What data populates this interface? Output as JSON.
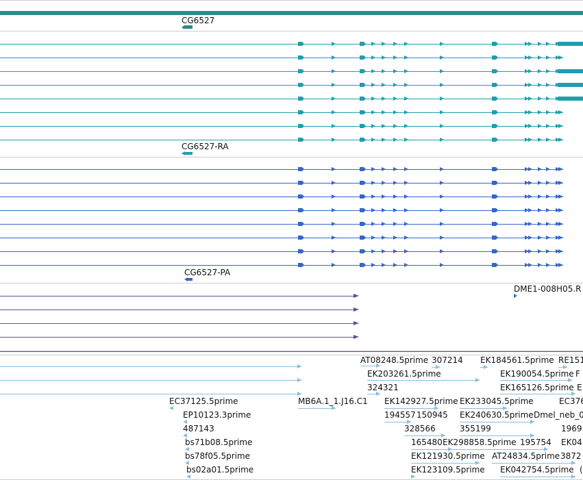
{
  "colors": {
    "gene": "#2e8b8b",
    "mrna": "#1e9eb0",
    "protein": "#3366cc",
    "purple": "#6a4a9c",
    "est": "#87bde0",
    "divider": "#cccccc"
  },
  "tracks": {
    "gene": {
      "label": "CG6527"
    },
    "mrna": {
      "label": "CG6527-RA",
      "rows": 8
    },
    "protein": {
      "label": "CG6527-PA",
      "rows": 8
    },
    "misc": {
      "label": "DME1-008H05.R"
    },
    "est_labels": [
      "AT08248.5prime",
      "307214",
      "EK184561.5prime",
      "RE151",
      "EK203261.5prime",
      "EK190054.5prime",
      "F",
      "324321",
      "EK165126.5prime",
      "E",
      "EC37125.5prime",
      "MB6A.1_1.J16.C1",
      "EK142927.5prime",
      "EK233045.5prime",
      "EC376",
      "EP10123.3prime",
      "194557",
      "150945",
      "EK240630.5prime",
      "Dmel_neb_0",
      "487143",
      "328566",
      "355199",
      "1969",
      "bs71b08.5prime",
      "165480",
      "EK298858.5prime",
      "195754",
      "EK04",
      "bs78f05.5prime",
      "EK121930.5prime",
      "AT24834.5prime",
      "3872",
      "bs02a01.5prime",
      "EK123109.5prime",
      "EK042754.5prime",
      "("
    ]
  }
}
